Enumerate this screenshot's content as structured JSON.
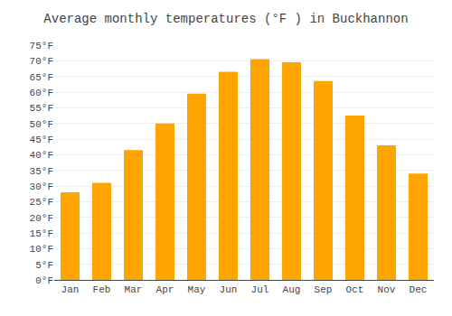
{
  "chart_data": {
    "type": "bar",
    "title": "Average monthly temperatures (°F ) in Buckhannon",
    "categories": [
      "Jan",
      "Feb",
      "Mar",
      "Apr",
      "May",
      "Jun",
      "Jul",
      "Aug",
      "Sep",
      "Oct",
      "Nov",
      "Dec"
    ],
    "values": [
      28,
      31,
      41.5,
      50,
      59.5,
      66.5,
      70.5,
      69.5,
      63.5,
      52.5,
      43,
      34
    ],
    "color": "#FFA500",
    "ylim": [
      0,
      75
    ],
    "yticks": [
      {
        "value": 0,
        "label": "0°F"
      },
      {
        "value": 5,
        "label": "5°F"
      },
      {
        "value": 10,
        "label": "10°F"
      },
      {
        "value": 15,
        "label": "15°F"
      },
      {
        "value": 20,
        "label": "20°F"
      },
      {
        "value": 25,
        "label": "25°F"
      },
      {
        "value": 30,
        "label": "30°F"
      },
      {
        "value": 35,
        "label": "35°F"
      },
      {
        "value": 40,
        "label": "40°F"
      },
      {
        "value": 45,
        "label": "45°F"
      },
      {
        "value": 50,
        "label": "50°F"
      },
      {
        "value": 55,
        "label": "55°F"
      },
      {
        "value": 60,
        "label": "60°F"
      },
      {
        "value": 65,
        "label": "65°F"
      },
      {
        "value": 70,
        "label": "70°F"
      },
      {
        "value": 75,
        "label": "75°F"
      }
    ],
    "grid": true
  }
}
